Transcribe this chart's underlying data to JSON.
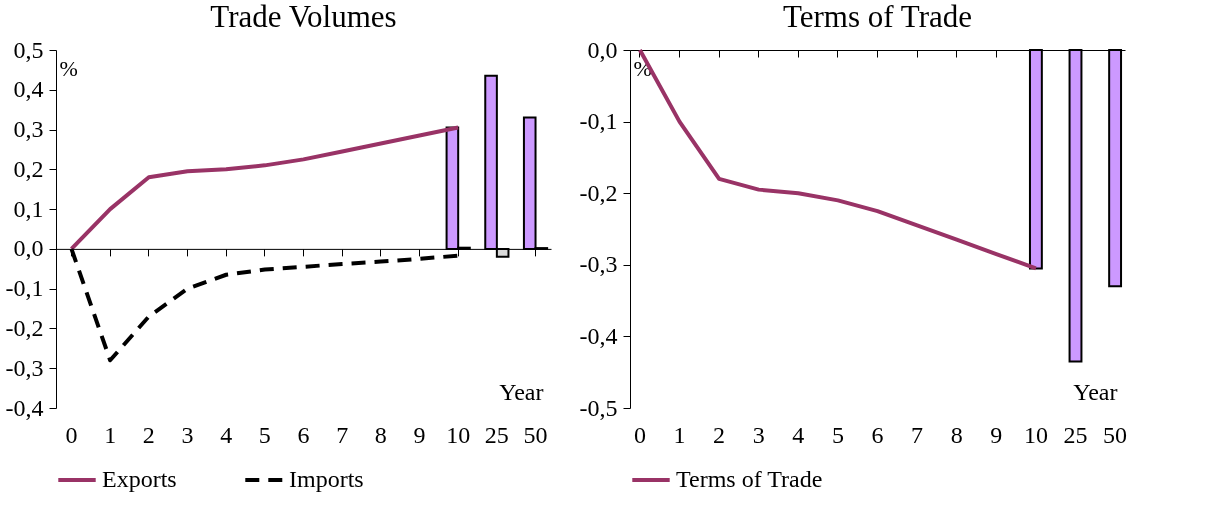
{
  "chart_data": [
    {
      "type": "line",
      "title": "Trade Volumes",
      "xlabel": "Year",
      "ylabel": "%",
      "categories": [
        "0",
        "1",
        "2",
        "3",
        "4",
        "5",
        "6",
        "7",
        "8",
        "9",
        "10",
        "25",
        "50"
      ],
      "ylim": [
        -0.4,
        0.5
      ],
      "yticks": [
        {
          "value": -0.4,
          "label": "-0,4"
        },
        {
          "value": -0.3,
          "label": "-0,3"
        },
        {
          "value": -0.2,
          "label": "-0,2"
        },
        {
          "value": -0.1,
          "label": "-0,1"
        },
        {
          "value": 0,
          "label": "0,0"
        },
        {
          "value": 0.1,
          "label": "0,1"
        },
        {
          "value": 0.2,
          "label": "0,2"
        },
        {
          "value": 0.3,
          "label": "0,3"
        },
        {
          "value": 0.4,
          "label": "0,4"
        },
        {
          "value": 0.5,
          "label": "0,5"
        }
      ],
      "legend": "bottom",
      "series": [
        {
          "type": "bar",
          "color": "#cc99ff",
          "values": [
            null,
            null,
            null,
            null,
            null,
            null,
            null,
            null,
            null,
            null,
            0.305,
            0.435,
            0.33
          ]
        },
        {
          "type": "bar",
          "color": "#d9d9d9",
          "values": [
            null,
            null,
            null,
            null,
            null,
            null,
            null,
            null,
            null,
            null,
            0.003,
            -0.02,
            0.002
          ]
        },
        {
          "name": "Exports",
          "color": "#993366",
          "line_style": "solid",
          "values": [
            0,
            0.1,
            0.18,
            0.195,
            0.2,
            0.21,
            0.225,
            0.245,
            0.265,
            0.285,
            0.305,
            null,
            null
          ]
        },
        {
          "name": "Imports",
          "color": "#000000",
          "line_style": "dashed",
          "values": [
            0,
            -0.28,
            -0.17,
            -0.1,
            -0.065,
            -0.052,
            -0.045,
            -0.038,
            -0.032,
            -0.025,
            -0.017,
            null,
            null
          ]
        }
      ]
    },
    {
      "type": "line",
      "title": "Terms of Trade",
      "xlabel": "Year",
      "ylabel": "%",
      "categories": [
        "0",
        "1",
        "2",
        "3",
        "4",
        "5",
        "6",
        "7",
        "8",
        "9",
        "10",
        "25",
        "50"
      ],
      "ylim": [
        -0.5,
        0
      ],
      "yticks": [
        {
          "value": -0.5,
          "label": "-0,5"
        },
        {
          "value": -0.4,
          "label": "-0,4"
        },
        {
          "value": -0.3,
          "label": "-0,3"
        },
        {
          "value": -0.2,
          "label": "-0,2"
        },
        {
          "value": -0.1,
          "label": "-0,1"
        },
        {
          "value": 0,
          "label": "0,0"
        }
      ],
      "legend": "bottom",
      "series": [
        {
          "type": "bar",
          "color": "#cc99ff",
          "values": [
            null,
            null,
            null,
            null,
            null,
            null,
            null,
            null,
            null,
            null,
            -0.305,
            -0.435,
            -0.33
          ]
        },
        {
          "name": "Terms of Trade",
          "color": "#993366",
          "line_style": "solid",
          "values": [
            0,
            -0.1,
            -0.18,
            -0.195,
            -0.2,
            -0.21,
            -0.225,
            -0.245,
            -0.265,
            -0.285,
            -0.305,
            null,
            null
          ]
        }
      ]
    }
  ]
}
